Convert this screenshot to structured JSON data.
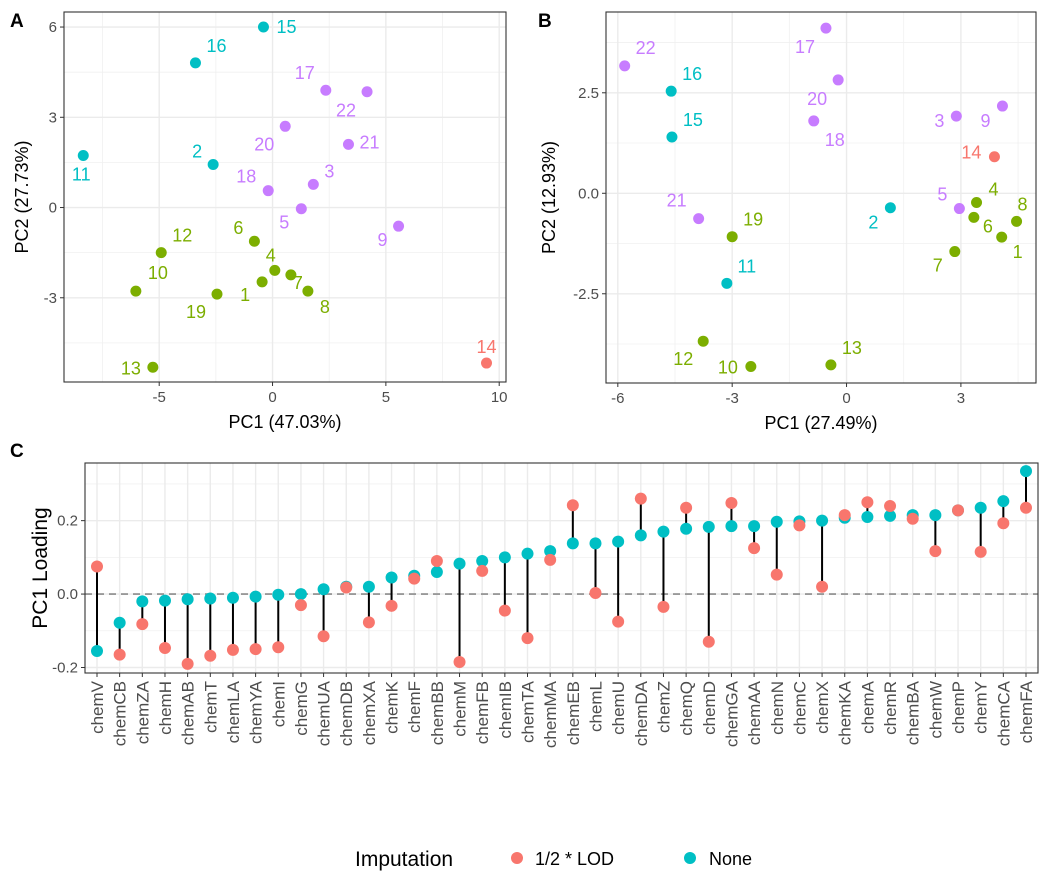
{
  "colors": {
    "red": "#F8766D",
    "cyan": "#00BFC4",
    "green": "#7CAE00",
    "purple": "#C77CFF"
  },
  "chart_data": [
    {
      "panel": "A",
      "type": "scatter",
      "xlabel": "PC1 (47.03%)",
      "ylabel": "PC2 (27.73%)",
      "xlim": [
        -9.2,
        10.3
      ],
      "ylim": [
        -5.8,
        6.5
      ],
      "xticks": [
        "-5",
        "0",
        "5",
        "10"
      ],
      "yticks": [
        "-3",
        "0",
        "3",
        "6"
      ],
      "grid": true,
      "points": [
        {
          "label": "15",
          "x": -0.4,
          "y": 6.0,
          "color": "cyan"
        },
        {
          "label": "16",
          "x": -3.4,
          "y": 4.81,
          "color": "cyan"
        },
        {
          "label": "11",
          "x": -8.35,
          "y": 1.73,
          "color": "cyan"
        },
        {
          "label": "2",
          "x": -2.62,
          "y": 1.43,
          "color": "cyan"
        },
        {
          "label": "17",
          "x": 2.35,
          "y": 3.9,
          "color": "purple"
        },
        {
          "label": "22",
          "x": 4.17,
          "y": 3.85,
          "color": "purple"
        },
        {
          "label": "20",
          "x": 0.56,
          "y": 2.7,
          "color": "purple"
        },
        {
          "label": "21",
          "x": 3.35,
          "y": 2.1,
          "color": "purple"
        },
        {
          "label": "18",
          "x": -0.19,
          "y": 0.56,
          "color": "purple"
        },
        {
          "label": "3",
          "x": 1.8,
          "y": 0.77,
          "color": "purple"
        },
        {
          "label": "5",
          "x": 1.27,
          "y": -0.04,
          "color": "purple"
        },
        {
          "label": "9",
          "x": 5.56,
          "y": -0.62,
          "color": "purple"
        },
        {
          "label": "6",
          "x": -0.8,
          "y": -1.12,
          "color": "green"
        },
        {
          "label": "12",
          "x": -4.91,
          "y": -1.5,
          "color": "green"
        },
        {
          "label": "4",
          "x": 0.1,
          "y": -2.09,
          "color": "green"
        },
        {
          "label": "7",
          "x": 0.81,
          "y": -2.24,
          "color": "green"
        },
        {
          "label": "1",
          "x": -0.46,
          "y": -2.47,
          "color": "green"
        },
        {
          "label": "8",
          "x": 1.56,
          "y": -2.78,
          "color": "green"
        },
        {
          "label": "10",
          "x": -6.03,
          "y": -2.78,
          "color": "green"
        },
        {
          "label": "19",
          "x": -2.45,
          "y": -2.88,
          "color": "green"
        },
        {
          "label": "13",
          "x": -5.28,
          "y": -5.31,
          "color": "green"
        },
        {
          "label": "14",
          "x": 9.44,
          "y": -5.17,
          "color": "red"
        }
      ]
    },
    {
      "panel": "B",
      "type": "scatter",
      "xlabel": "PC1 (27.49%)",
      "ylabel": "PC2 (12.93%)",
      "xlim": [
        -6.31,
        4.97
      ],
      "ylim": [
        -4.72,
        4.51
      ],
      "xticks": [
        "-6",
        "-3",
        "0",
        "3"
      ],
      "yticks": [
        "-2.5",
        "0.0",
        "2.5"
      ],
      "grid": true,
      "points": [
        {
          "label": "22",
          "x": -5.82,
          "y": 3.17,
          "color": "purple"
        },
        {
          "label": "16",
          "x": -4.6,
          "y": 2.54,
          "color": "cyan"
        },
        {
          "label": "15",
          "x": -4.58,
          "y": 1.4,
          "color": "cyan"
        },
        {
          "label": "17",
          "x": -0.54,
          "y": 4.11,
          "color": "purple"
        },
        {
          "label": "20",
          "x": -0.22,
          "y": 2.82,
          "color": "purple"
        },
        {
          "label": "18",
          "x": -0.86,
          "y": 1.8,
          "color": "purple"
        },
        {
          "label": "3",
          "x": 2.88,
          "y": 1.92,
          "color": "purple"
        },
        {
          "label": "9",
          "x": 4.09,
          "y": 2.17,
          "color": "purple"
        },
        {
          "label": "14",
          "x": 3.88,
          "y": 0.91,
          "color": "red"
        },
        {
          "label": "21",
          "x": -3.88,
          "y": -0.63,
          "color": "purple"
        },
        {
          "label": "19",
          "x": -3.0,
          "y": -1.08,
          "color": "green"
        },
        {
          "label": "2",
          "x": 1.15,
          "y": -0.36,
          "color": "cyan"
        },
        {
          "label": "5",
          "x": 2.96,
          "y": -0.38,
          "color": "purple"
        },
        {
          "label": "4",
          "x": 3.41,
          "y": -0.23,
          "color": "green"
        },
        {
          "label": "6",
          "x": 3.34,
          "y": -0.6,
          "color": "green"
        },
        {
          "label": "8",
          "x": 4.46,
          "y": -0.7,
          "color": "green"
        },
        {
          "label": "1",
          "x": 4.07,
          "y": -1.09,
          "color": "green"
        },
        {
          "label": "7",
          "x": 2.84,
          "y": -1.45,
          "color": "green"
        },
        {
          "label": "11",
          "x": -3.14,
          "y": -2.24,
          "color": "cyan"
        },
        {
          "label": "12",
          "x": -3.76,
          "y": -3.68,
          "color": "green"
        },
        {
          "label": "10",
          "x": -2.51,
          "y": -4.31,
          "color": "green"
        },
        {
          "label": "13",
          "x": -0.41,
          "y": -4.27,
          "color": "green"
        }
      ]
    },
    {
      "panel": "C",
      "type": "dumbbell",
      "ylabel": "PC1 Loading",
      "ylim": [
        -0.215,
        0.357
      ],
      "yticks": [
        "-0.2",
        "0.0",
        "0.2"
      ],
      "reference_line": 0,
      "grid": true,
      "legend": {
        "title": "Imputation",
        "placement": "bottom",
        "entries": [
          {
            "name": "1/2 * LOD",
            "color": "red"
          },
          {
            "name": "None",
            "color": "cyan"
          }
        ]
      },
      "categories": [
        "chemV",
        "chemCB",
        "chemZA",
        "chemH",
        "chemAB",
        "chemT",
        "chemLA",
        "chemYA",
        "chemI",
        "chemG",
        "chemUA",
        "chemDB",
        "chemXA",
        "chemK",
        "chemF",
        "chemBB",
        "chemM",
        "chemFB",
        "chemIB",
        "chemTA",
        "chemMA",
        "chemEB",
        "chemL",
        "chemU",
        "chemDA",
        "chemZ",
        "chemQ",
        "chemD",
        "chemGA",
        "chemAA",
        "chemN",
        "chemC",
        "chemX",
        "chemKA",
        "chemA",
        "chemR",
        "chemBA",
        "chemW",
        "chemP",
        "chemY",
        "chemCA",
        "chemFA"
      ],
      "series": [
        {
          "name": "1/2 * LOD",
          "values": [
            0.075,
            -0.165,
            -0.082,
            -0.147,
            -0.19,
            -0.168,
            -0.152,
            -0.15,
            -0.145,
            -0.03,
            -0.115,
            0.018,
            -0.077,
            -0.032,
            0.042,
            0.09,
            -0.185,
            0.063,
            -0.045,
            -0.12,
            0.093,
            0.242,
            0.003,
            -0.075,
            0.26,
            -0.035,
            0.235,
            -0.13,
            0.248,
            0.125,
            0.053,
            0.187,
            0.02,
            0.215,
            0.25,
            0.24,
            0.205,
            0.117,
            0.228,
            0.115,
            0.193,
            0.235
          ]
        },
        {
          "name": "None",
          "values": [
            -0.155,
            -0.078,
            -0.02,
            -0.018,
            -0.014,
            -0.012,
            -0.01,
            -0.007,
            -0.002,
            0.0,
            0.013,
            0.02,
            0.02,
            0.045,
            0.05,
            0.06,
            0.083,
            0.09,
            0.1,
            0.11,
            0.117,
            0.138,
            0.138,
            0.143,
            0.16,
            0.17,
            0.178,
            0.183,
            0.185,
            0.185,
            0.197,
            0.198,
            0.2,
            0.208,
            0.21,
            0.213,
            0.215,
            0.215,
            0.228,
            0.235,
            0.253,
            0.335
          ]
        }
      ]
    }
  ]
}
